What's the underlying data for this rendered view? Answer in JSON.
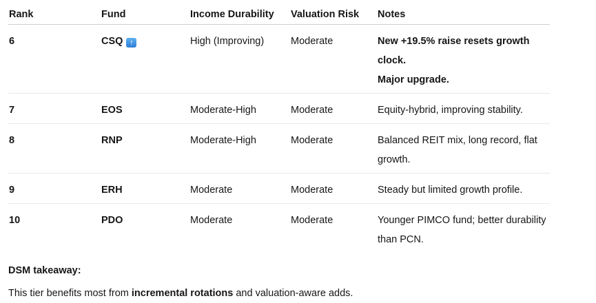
{
  "table": {
    "columns": {
      "rank": "Rank",
      "fund": "Fund",
      "income_durability": "Income Durability",
      "valuation_risk": "Valuation Risk",
      "notes": "Notes"
    },
    "rows": [
      {
        "rank": "6",
        "fund": "CSQ",
        "fund_badge_icon": "up-arrow-emoji",
        "fund_badge_glyph": "↑",
        "income_durability": "High (Improving)",
        "valuation_risk": "Moderate",
        "notes_emphasis": "bold",
        "notes_lines": [
          "New +19.5% raise resets growth clock.",
          "Major upgrade."
        ]
      },
      {
        "rank": "7",
        "fund": "EOS",
        "income_durability": "Moderate-High",
        "valuation_risk": "Moderate",
        "notes_lines": [
          "Equity-hybrid, improving stability."
        ]
      },
      {
        "rank": "8",
        "fund": "RNP",
        "income_durability": "Moderate-High",
        "valuation_risk": "Moderate",
        "notes_lines": [
          "Balanced REIT mix, long record, flat",
          "growth."
        ]
      },
      {
        "rank": "9",
        "fund": "ERH",
        "income_durability": "Moderate",
        "valuation_risk": "Moderate",
        "notes_lines": [
          "Steady but limited growth profile."
        ]
      },
      {
        "rank": "10",
        "fund": "PDO",
        "income_durability": "Moderate",
        "valuation_risk": "Moderate",
        "notes_lines": [
          "Younger PIMCO fund; better durability",
          "than PCN."
        ]
      }
    ]
  },
  "takeaway": {
    "heading": "DSM takeaway:",
    "body_prefix": "This tier benefits most from ",
    "body_bold": "incremental rotations",
    "body_suffix": " and valuation-aware adds."
  },
  "colors": {
    "text": "#161616",
    "header_border": "#cfcfcf",
    "row_border": "#e9e9e9",
    "badge_blue_top": "#5fb0f0",
    "badge_blue_bottom": "#2e7ed6"
  }
}
